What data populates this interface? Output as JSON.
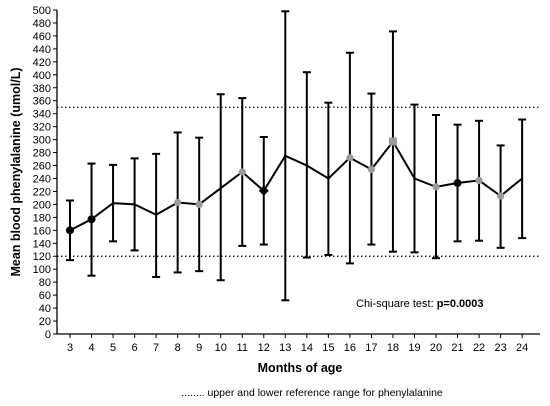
{
  "chart_data": {
    "type": "line",
    "xlabel": "Months of age",
    "ylabel": "Mean blood phenylalanine (umol/L)",
    "ylim": [
      0,
      500
    ],
    "y_tick_step": 20,
    "x": [
      3,
      4,
      5,
      6,
      7,
      8,
      9,
      10,
      11,
      12,
      13,
      14,
      15,
      16,
      17,
      18,
      19,
      20,
      21,
      22,
      23,
      24
    ],
    "mean": [
      160,
      177,
      202,
      200,
      184,
      203,
      200,
      225,
      250,
      221,
      275,
      260,
      240,
      272,
      254,
      297,
      240,
      227,
      233,
      237,
      213,
      240
    ],
    "error_upper": [
      206,
      263,
      261,
      271,
      278,
      311,
      303,
      370,
      364,
      304,
      498,
      404,
      357,
      434,
      371,
      467,
      354,
      338,
      323,
      329,
      291,
      331
    ],
    "error_lower": [
      114,
      90,
      143,
      129,
      88,
      95,
      97,
      83,
      136,
      138,
      52,
      118,
      122,
      109,
      138,
      127,
      126,
      117,
      143,
      144,
      133,
      148
    ],
    "marker_style": [
      "filled",
      "filled",
      "none",
      "none",
      "none",
      "gray",
      "gray",
      "none",
      "gray",
      "diamond",
      "none",
      "none",
      "none",
      "gray",
      "gray",
      "gray-square",
      "none",
      "gray",
      "filled",
      "gray",
      "gray",
      "none"
    ],
    "reference_lines": [
      120,
      350
    ],
    "annotation_prefix": "Chi-square test: ",
    "annotation_value": "p=0.0003",
    "footnote": "........ upper and lower reference range for phenylalanine",
    "colors": {
      "line": "#000000",
      "gray_marker": "#9a9a9a",
      "filled_marker": "#000000"
    }
  }
}
